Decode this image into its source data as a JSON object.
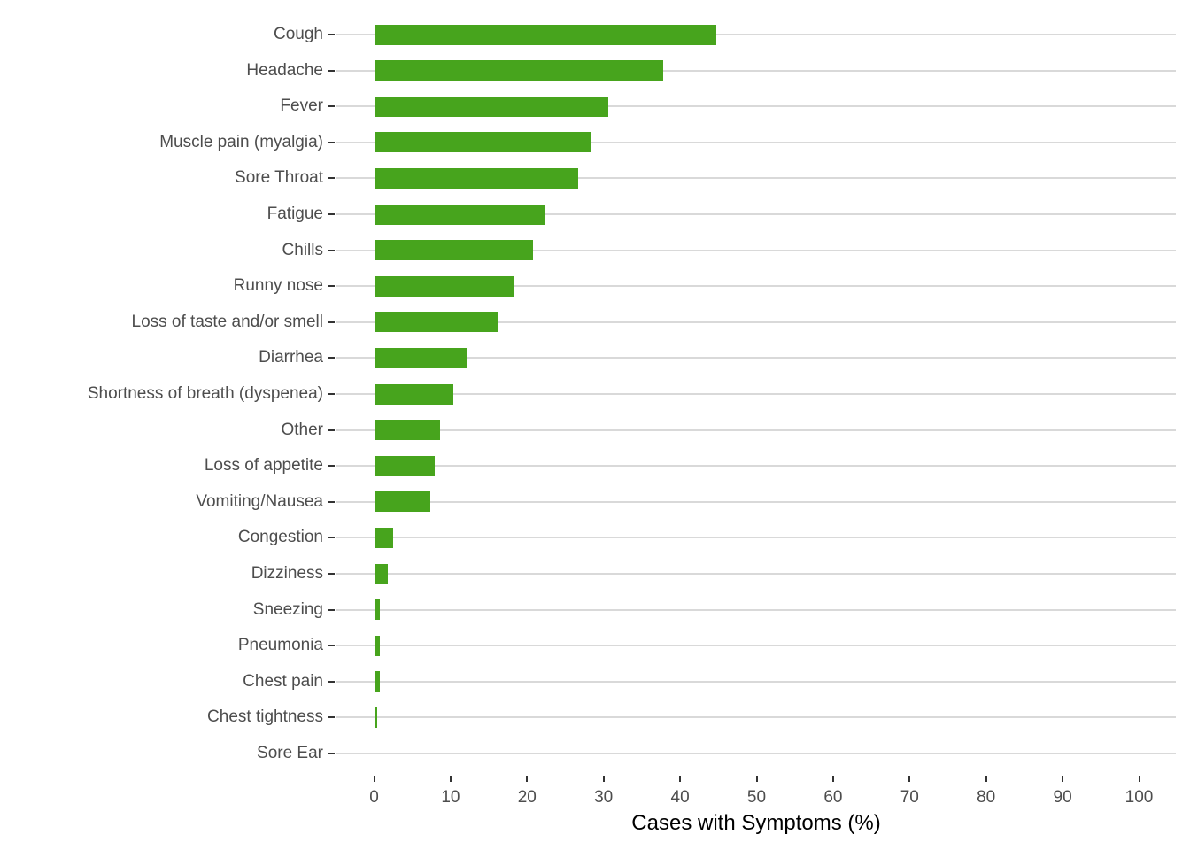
{
  "chart_data": {
    "type": "bar",
    "orientation": "horizontal",
    "title": "",
    "xlabel": "Cases with Symptoms (%)",
    "ylabel": "",
    "xlim": [
      0,
      100
    ],
    "x_ticks": [
      0,
      10,
      20,
      30,
      40,
      50,
      60,
      70,
      80,
      90,
      100
    ],
    "grid": "horizontal category gridlines only, drawn behind bars",
    "legend": "none",
    "categories": [
      "Cough",
      "Headache",
      "Fever",
      "Muscle pain (myalgia)",
      "Sore Throat",
      "Fatigue",
      "Chills",
      "Runny nose",
      "Loss of taste and/or smell",
      "Diarrhea",
      "Shortness of breath (dyspenea)",
      "Other",
      "Loss of appetite",
      "Vomiting/Nausea",
      "Congestion",
      "Dizziness",
      "Sneezing",
      "Pneumonia",
      "Chest pain",
      "Chest tightness",
      "Sore Ear"
    ],
    "values": [
      44.7,
      37.8,
      30.6,
      28.3,
      26.7,
      22.3,
      20.8,
      18.3,
      16.1,
      12.2,
      10.4,
      8.6,
      7.9,
      7.4,
      2.5,
      1.8,
      0.7,
      0.7,
      0.8,
      0.4,
      0.2
    ]
  },
  "colors": {
    "bar": "#47a41d",
    "grid": "#d9d9d9",
    "tick": "#333333",
    "axis_text": "#4d4d4d",
    "title_text": "#000000",
    "background": "#ffffff"
  }
}
